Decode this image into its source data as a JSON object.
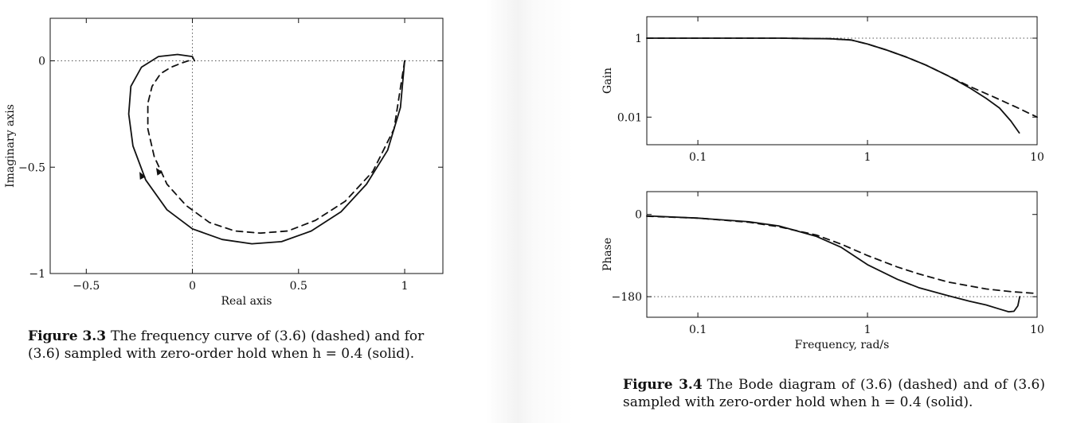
{
  "figure_3_3": {
    "caption_label": "Figure 3.3",
    "caption_text": "The frequency curve of (3.6) (dashed) and for (3.6) sampled with zero-order hold when h = 0.4 (solid)."
  },
  "figure_3_4": {
    "caption_label": "Figure 3.4",
    "caption_text": "The Bode diagram of (3.6) (dashed) and of (3.6) sampled with zero-order hold when h = 0.4 (solid)."
  },
  "chart_data": [
    {
      "type": "line",
      "title": "",
      "xlabel": "Real axis",
      "ylabel": "Imaginary axis",
      "xlim": [
        -0.67,
        1.18
      ],
      "ylim": [
        -1.0,
        0.2
      ],
      "xticks": [
        -0.5,
        0,
        0.5,
        1
      ],
      "xtick_labels": [
        "−0.5",
        "0",
        "0.5",
        "1"
      ],
      "yticks": [
        0,
        -0.5,
        -1
      ],
      "ytick_labels": [
        "0",
        "−0.5",
        "−1"
      ],
      "grid": false,
      "reference_lines": [
        {
          "axis": "x",
          "value": 0,
          "style": "dotted"
        },
        {
          "axis": "y",
          "value": 0,
          "style": "dotted"
        }
      ],
      "series": [
        {
          "style": "dashed",
          "x": [
            1.0,
            0.95,
            0.85,
            0.72,
            0.58,
            0.45,
            0.32,
            0.2,
            0.08,
            -0.03,
            -0.12,
            -0.18,
            -0.21,
            -0.21,
            -0.19,
            -0.15,
            -0.1,
            -0.05,
            -0.02,
            0.0
          ],
          "y": [
            0.0,
            -0.32,
            -0.52,
            -0.66,
            -0.75,
            -0.8,
            -0.81,
            -0.8,
            -0.76,
            -0.68,
            -0.58,
            -0.45,
            -0.32,
            -0.2,
            -0.12,
            -0.06,
            -0.03,
            -0.01,
            0.0,
            0.0
          ]
        },
        {
          "style": "solid",
          "x": [
            1.0,
            0.98,
            0.92,
            0.82,
            0.7,
            0.56,
            0.42,
            0.28,
            0.14,
            0.0,
            -0.12,
            -0.22,
            -0.28,
            -0.3,
            -0.29,
            -0.24,
            -0.16,
            -0.07,
            0.0,
            0.01
          ],
          "y": [
            0.0,
            -0.22,
            -0.42,
            -0.58,
            -0.71,
            -0.8,
            -0.85,
            -0.86,
            -0.84,
            -0.79,
            -0.7,
            -0.56,
            -0.4,
            -0.25,
            -0.12,
            -0.03,
            0.02,
            0.03,
            0.02,
            0.0
          ]
        }
      ],
      "arrows": [
        {
          "series": 1,
          "x": -0.24,
          "y": -0.54
        },
        {
          "series": 0,
          "x": -0.16,
          "y": -0.52
        }
      ]
    },
    {
      "type": "line",
      "title": "",
      "xlabel": "",
      "ylabel": "Gain",
      "xscale": "log",
      "yscale": "log",
      "xlim": [
        0.05,
        10
      ],
      "ylim": [
        0.002,
        3.5
      ],
      "xticks": [
        0.1,
        1,
        10
      ],
      "xtick_labels": [
        "0.1",
        "1",
        "10"
      ],
      "yticks": [
        1,
        0.01
      ],
      "ytick_labels": [
        "1",
        "0.01"
      ],
      "grid": false,
      "reference_lines": [
        {
          "axis": "y",
          "value": 1,
          "style": "dotted"
        }
      ],
      "series": [
        {
          "style": "dashed",
          "x": [
            0.05,
            0.1,
            0.3,
            0.6,
            0.8,
            1.0,
            1.3,
            1.7,
            2.2,
            3.0,
            4.0,
            5.5,
            7.5,
            10.0
          ],
          "y": [
            1.0,
            1.0,
            0.999,
            0.97,
            0.9,
            0.71,
            0.5,
            0.33,
            0.21,
            0.11,
            0.06,
            0.033,
            0.018,
            0.01
          ]
        },
        {
          "style": "solid",
          "x": [
            0.05,
            0.1,
            0.3,
            0.6,
            0.8,
            1.0,
            1.3,
            1.7,
            2.2,
            3.0,
            4.0,
            5.0,
            6.0,
            7.0,
            7.85
          ],
          "y": [
            1.0,
            1.0,
            0.999,
            0.97,
            0.9,
            0.71,
            0.5,
            0.33,
            0.21,
            0.11,
            0.055,
            0.03,
            0.017,
            0.008,
            0.004
          ]
        }
      ]
    },
    {
      "type": "line",
      "title": "",
      "xlabel": "Frequency, rad/s",
      "ylabel": "Phase",
      "xscale": "log",
      "xlim": [
        0.05,
        10
      ],
      "ylim": [
        -225,
        50
      ],
      "xticks": [
        0.1,
        1,
        10
      ],
      "xtick_labels": [
        "0.1",
        "1",
        "10"
      ],
      "yticks": [
        0,
        -180
      ],
      "ytick_labels": [
        "0",
        "−180"
      ],
      "grid": false,
      "reference_lines": [
        {
          "axis": "y",
          "value": -180,
          "style": "dotted"
        }
      ],
      "series": [
        {
          "style": "dashed",
          "x": [
            0.05,
            0.1,
            0.2,
            0.3,
            0.5,
            0.7,
            1.0,
            1.5,
            2.0,
            3.0,
            5.0,
            7.0,
            10.0
          ],
          "y": [
            -4,
            -8,
            -17,
            -27,
            -45,
            -65,
            -90,
            -115,
            -130,
            -148,
            -163,
            -169,
            -173
          ]
        },
        {
          "style": "solid",
          "x": [
            0.05,
            0.1,
            0.2,
            0.3,
            0.5,
            0.7,
            1.0,
            1.5,
            2.0,
            3.0,
            4.0,
            5.0,
            6.0,
            6.8,
            7.3,
            7.7,
            7.9
          ],
          "y": [
            -3,
            -8,
            -16,
            -25,
            -48,
            -72,
            -110,
            -142,
            -160,
            -178,
            -190,
            -198,
            -207,
            -213,
            -212,
            -200,
            -180
          ]
        }
      ]
    }
  ]
}
